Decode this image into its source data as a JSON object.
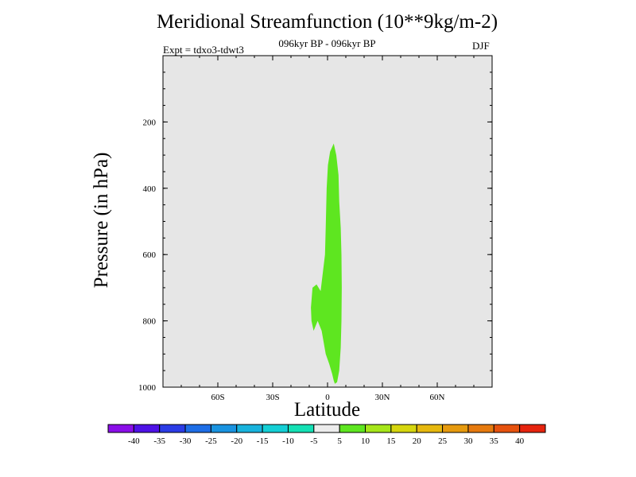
{
  "chart_data": {
    "type": "contour",
    "title": "Meridional Streamfunction (10**9kg/m-2)",
    "subtitle": "096kyr BP - 096kyr BP",
    "experiment": "Expt = tdxo3-tdwt3",
    "season": "DJF",
    "xlabel": "Latitude",
    "ylabel": "Pressure (in hPa)",
    "xlim": [
      -90,
      90
    ],
    "ylim": [
      1000,
      0
    ],
    "y_reversed": true,
    "background_color": "#e6e6e6",
    "x_ticks": [
      {
        "value": -60,
        "label": "60S"
      },
      {
        "value": -30,
        "label": "30S"
      },
      {
        "value": 0,
        "label": "0"
      },
      {
        "value": 30,
        "label": "30N"
      },
      {
        "value": 60,
        "label": "60N"
      }
    ],
    "y_ticks": [
      {
        "value": 200,
        "label": "200"
      },
      {
        "value": 400,
        "label": "400"
      },
      {
        "value": 600,
        "label": "600"
      },
      {
        "value": 800,
        "label": "800"
      },
      {
        "value": 1000,
        "label": "1000"
      }
    ],
    "filled_regions": [
      {
        "level_range": [
          5,
          10
        ],
        "color": "#5ee620",
        "outline": [
          [
            3.4,
            265
          ],
          [
            4.8,
            300
          ],
          [
            6,
            360
          ],
          [
            6.4,
            440
          ],
          [
            7.2,
            520
          ],
          [
            7.6,
            600
          ],
          [
            7.8,
            700
          ],
          [
            7.6,
            800
          ],
          [
            7.2,
            880
          ],
          [
            6.4,
            950
          ],
          [
            5.2,
            985
          ],
          [
            4,
            990
          ],
          [
            3.4,
            980
          ],
          [
            2.5,
            960
          ],
          [
            0.9,
            930
          ],
          [
            -1.0,
            900
          ],
          [
            -3.2,
            830
          ],
          [
            -5.4,
            800
          ],
          [
            -7.6,
            830
          ],
          [
            -8.8,
            800
          ],
          [
            -9.1,
            760
          ],
          [
            -8.2,
            700
          ],
          [
            -6.0,
            690
          ],
          [
            -3.8,
            710
          ],
          [
            -1.4,
            600
          ],
          [
            -1.0,
            520
          ],
          [
            -0.5,
            400
          ],
          [
            0.2,
            330
          ],
          [
            1.4,
            290
          ]
        ]
      }
    ],
    "colorbar": {
      "labels": [
        "-40",
        "-35",
        "-30",
        "-25",
        "-20",
        "-15",
        "-10",
        "-5",
        "5",
        "10",
        "15",
        "20",
        "25",
        "30",
        "35",
        "40"
      ],
      "colors": [
        "#8a0ee8",
        "#4e12e6",
        "#2b3ce6",
        "#1e6ee6",
        "#1993e0",
        "#18b3dd",
        "#14cfd5",
        "#14e0b4",
        "#ececec",
        "#5ee620",
        "#a6e61a",
        "#d6d60e",
        "#e6b80e",
        "#e69a0e",
        "#e67a0e",
        "#e6520e",
        "#e6240e"
      ]
    }
  }
}
